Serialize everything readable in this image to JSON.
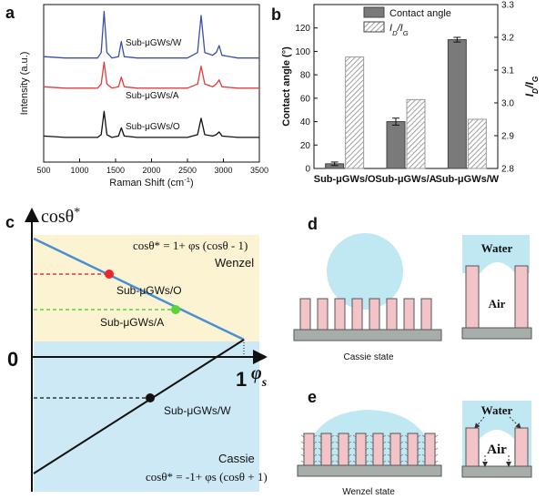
{
  "chart_data": [
    {
      "type": "line",
      "panel_label": "a",
      "ylabel": "Intensity (a.u.)",
      "xlabel": "Raman Shift (cm-1)",
      "xlim": [
        500,
        3500
      ],
      "xticks": [
        500,
        1000,
        1500,
        2000,
        2500,
        3000,
        3500
      ],
      "ylim": [
        0,
        115
      ],
      "x": [
        500,
        800,
        1100,
        1250,
        1300,
        1340,
        1380,
        1450,
        1540,
        1580,
        1620,
        1800,
        2200,
        2500,
        2640,
        2690,
        2740,
        2850,
        2900,
        2940,
        2980,
        3200,
        3500
      ],
      "series": [
        {
          "name": "Sub-μGWs/W",
          "color": "#3a4fa8",
          "values": [
            77,
            76,
            76,
            76,
            80,
            110,
            80,
            76,
            77,
            88,
            77,
            76,
            76,
            76,
            80,
            107,
            80,
            78,
            80,
            85,
            78,
            76,
            76
          ]
        },
        {
          "name": "Sub-μGWs/A",
          "color": "#e8383d",
          "values": [
            55,
            54,
            54,
            54,
            57,
            73,
            57,
            54,
            55,
            62,
            55,
            54,
            54,
            54,
            57,
            70,
            57,
            55,
            57,
            60,
            55,
            54,
            54
          ]
        },
        {
          "name": "Sub-μGWs/O",
          "color": "#111111",
          "values": [
            19,
            18,
            18,
            18,
            20,
            37,
            20,
            18,
            19,
            25,
            19,
            18,
            18,
            18,
            20,
            32,
            20,
            19,
            20,
            22,
            19,
            18,
            18
          ]
        }
      ]
    },
    {
      "type": "bar",
      "panel_label": "b",
      "ylabel": "Contact angle (°)",
      "y2label": "ID/IG",
      "categories": [
        "Sub-μGWs/O",
        "Sub-μGWs/A",
        "Sub-μGWs/W"
      ],
      "ylim": [
        0,
        140
      ],
      "yticks": [
        0,
        20,
        40,
        60,
        80,
        100,
        120
      ],
      "y2lim": [
        2.8,
        3.3
      ],
      "y2ticks": [
        2.8,
        2.9,
        {
          "value": 3,
          "label": "3.0"
        },
        3.1,
        3.2,
        3.3
      ],
      "series": [
        {
          "name": "Contact angle",
          "color": "#7a7a7a",
          "values": [
            4,
            40,
            110
          ],
          "errors": [
            1.5,
            3,
            2
          ]
        },
        {
          "name": "ID/IG",
          "color": "#9a9a9a",
          "axis": "y2",
          "values": [
            3.14,
            3.01,
            2.95
          ]
        }
      ]
    }
  ],
  "panel_c": {
    "label": "c",
    "y_axis": "cosθ*",
    "x_axis": "φs",
    "origin": "0",
    "x_end": "1",
    "equation_top": "cosθ* = 1+ φs (cosθ - 1)",
    "regime_top": "Wenzel",
    "points": [
      "Sub-μGWs/O",
      "Sub-μGWs/A",
      "Sub-μGWs/W"
    ],
    "regime_bottom": "Cassie",
    "equation_bottom": "cosθ* = -1+ φs (cosθ + 1)"
  },
  "panel_d": {
    "label": "d",
    "water": "Water",
    "air": "Air",
    "caption": "Cassie state"
  },
  "panel_e": {
    "label": "e",
    "water": "Water",
    "air": "Air",
    "caption": "Wenzel state"
  }
}
